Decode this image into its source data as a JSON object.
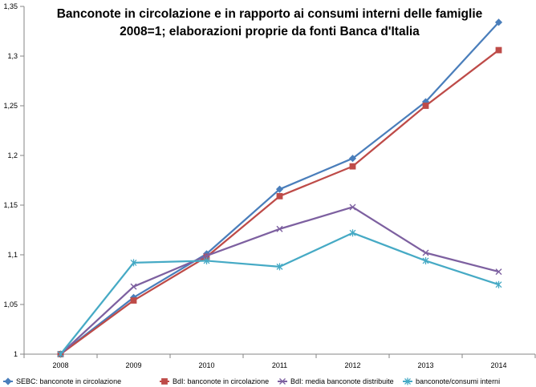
{
  "chart_data": {
    "type": "line",
    "title": "Banconote in circolazione e in rapporto ai consumi interni delle famiglie",
    "subtitle": "2008=1; elaborazioni proprie da fonti Banca d'Italia",
    "xlabel": "",
    "ylabel": "",
    "categories": [
      "2008",
      "2009",
      "2010",
      "2011",
      "2012",
      "2013",
      "2014"
    ],
    "ylim": [
      1,
      1.35
    ],
    "yticks": [
      1,
      1.05,
      1.1,
      1.15,
      1.2,
      1.25,
      1.3,
      1.35
    ],
    "ytick_labels": [
      "1",
      "1,05",
      "1,1",
      "1,15",
      "1,2",
      "1,25",
      "1,3",
      "1,35"
    ],
    "grid": false,
    "legend": "bottom",
    "axis_color": "#868686",
    "series": [
      {
        "name": "SEBC: banconote in circolazione",
        "color": "#4A7EBB",
        "marker": "diamond",
        "values": [
          1,
          1.057,
          1.101,
          1.166,
          1.197,
          1.254,
          1.334
        ]
      },
      {
        "name": "BdI: banconote in circolazione",
        "color": "#BE4B48",
        "marker": "square",
        "values": [
          1,
          1.054,
          1.098,
          1.159,
          1.189,
          1.25,
          1.306
        ]
      },
      {
        "name": "BdI: media banconote distribuite",
        "color": "#7D60A0",
        "marker": "x",
        "values": [
          1,
          1.068,
          1.099,
          1.126,
          1.148,
          1.102,
          1.083
        ]
      },
      {
        "name": "banconote/consumi interni",
        "color": "#46AAC5",
        "marker": "star",
        "values": [
          1,
          1.092,
          1.094,
          1.088,
          1.122,
          1.094,
          1.07
        ]
      }
    ]
  }
}
